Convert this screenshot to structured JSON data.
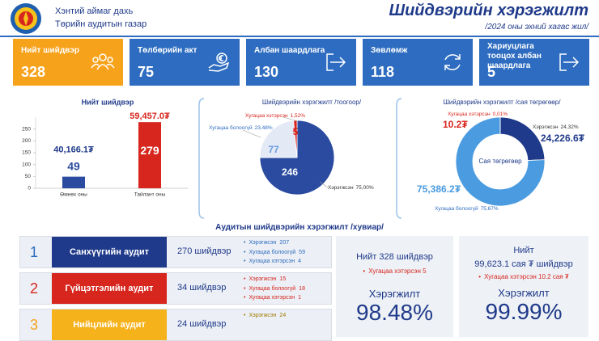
{
  "header": {
    "org_line1": "Хэнтий аймаг дахь",
    "org_line2": "Төрийн аудитын газар",
    "title": "Шийдвэрийн хэрэгжилт",
    "subtitle": "/2024 оны эхний хагас жил/"
  },
  "cards": [
    {
      "label": "Нийт шийдвэр",
      "value": 328
    },
    {
      "label": "Төлбөрийн акт",
      "value": 75
    },
    {
      "label": "Албан шаардлага",
      "value": 130
    },
    {
      "label": "Зөвлөмж",
      "value": 118
    },
    {
      "label": "Хариуцлага тооцох албан шаардлага",
      "value": 5
    }
  ],
  "chart_data": [
    {
      "type": "bar",
      "title": "Нийт шийдвэр",
      "categories": [
        "Өмнөх оны",
        "Тайлант оны"
      ],
      "values": [
        49,
        279
      ],
      "annotations": [
        "40,166.1₮",
        "59,457.0₮"
      ],
      "colors": [
        "#2b4ba0",
        "#d7261e"
      ],
      "ylim": [
        0,
        300
      ],
      "yticks": [
        0,
        50,
        100,
        150,
        200,
        250
      ],
      "grid": false
    },
    {
      "type": "pie",
      "title": "Шийдвэрийн хэрэгжилт /тоогоор/",
      "categories": [
        "Хэрэгжсэн",
        "Хугацаа болоогүй",
        "Хугацаа хэтэрсэн"
      ],
      "values": [
        246,
        77,
        5
      ],
      "percent_labels": [
        "75,00%",
        "23,48%",
        "1,52%"
      ],
      "colors": [
        "#2b4ba0",
        "#e3eaf6",
        "#d7261e"
      ]
    },
    {
      "type": "donut",
      "title": "Шийдвэрийн хэрэгжилт /сая төгрөгөөр/",
      "center_label": "Сая төгрөгөөр",
      "categories": [
        "Хэрэгжсэн",
        "Хугацаа болоогүй",
        "Хугацаа хэтэрсэн"
      ],
      "values": [
        24226.6,
        75386.2,
        10.2
      ],
      "value_labels": [
        "24,226.6₮",
        "75,386.2₮",
        "10.2₮"
      ],
      "percent_labels": [
        "24,32%",
        "75,67%",
        "0,01%"
      ],
      "colors": [
        "#1f3a8a",
        "#4a9be0",
        "#d7261e"
      ]
    }
  ],
  "section_title": "Аудитын шийдвэрийн хэрэгжилт /хувиар/",
  "audits": [
    {
      "index": 1,
      "name": "Санхүүгийн аудит",
      "total": "270 шийдвэр",
      "items": [
        {
          "label": "Хэрэгжсэн",
          "value": 207
        },
        {
          "label": "Хугацаа болоогүй",
          "value": 59
        },
        {
          "label": "Хугацаа хэтэрсэн",
          "value": 4
        }
      ]
    },
    {
      "index": 2,
      "name": "Гүйцэтгэлийн аудит",
      "total": "34 шийдвэр",
      "items": [
        {
          "label": "Хэрэгжсэн",
          "value": 15
        },
        {
          "label": "Хугацаа болоогүй",
          "value": 18
        },
        {
          "label": "Хугацаа хэтэрсэн",
          "value": 1
        }
      ]
    },
    {
      "index": 3,
      "name": "Нийцлийн аудит",
      "total": "24 шийдвэр",
      "items": [
        {
          "label": "Хэрэгжсэн",
          "value": 24
        }
      ]
    }
  ],
  "summary": [
    {
      "heading": "Нийт 328 шийдвэр",
      "overdue": "Хугацаа хэтэрсэн  5",
      "rate_label": "Хэрэгжилт",
      "rate": "98.48%"
    },
    {
      "heading": "Нийт",
      "subheading": "99,623.1 сая ₮ шийдвэр",
      "overdue": "Хугацаа хэтэрсэн 10.2 сая ₮",
      "rate_label": "Хэрэгжилт",
      "rate": "99.99%"
    }
  ]
}
